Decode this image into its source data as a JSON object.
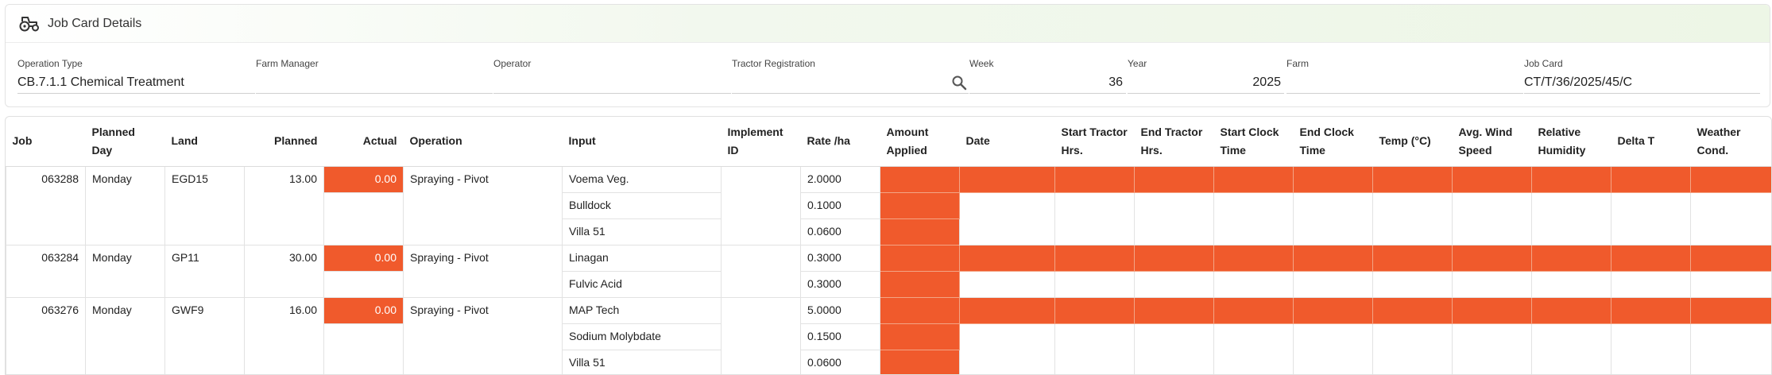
{
  "header": {
    "title": "Job Card Details",
    "icon": "tractor-icon",
    "fields": {
      "operation_type": {
        "label": "Operation Type",
        "value": "CB.7.1.1 Chemical Treatment"
      },
      "farm_manager": {
        "label": "Farm Manager",
        "value": ""
      },
      "operator": {
        "label": "Operator",
        "value": ""
      },
      "tractor_registration": {
        "label": "Tractor Registration",
        "value": ""
      },
      "week": {
        "label": "Week",
        "value": "36"
      },
      "year": {
        "label": "Year",
        "value": "2025"
      },
      "farm": {
        "label": "Farm",
        "value": ""
      },
      "job_card": {
        "label": "Job Card",
        "value": "CT/T/36/2025/45/C"
      }
    }
  },
  "table": {
    "headers": {
      "job": "Job",
      "planned_day": "Planned Day",
      "land": "Land",
      "planned": "Planned",
      "actual": "Actual",
      "operation": "Operation",
      "input": "Input",
      "implement_id_1": "Implement",
      "implement_id_2": "ID",
      "rate": "Rate /ha",
      "amount_1": "Amount",
      "amount_2": "Applied",
      "date": "Date",
      "start_tractor_1": "Start Tractor",
      "start_tractor_2": "Hrs.",
      "end_tractor_1": "End Tractor",
      "end_tractor_2": "Hrs.",
      "start_clock_1": "Start Clock",
      "start_clock_2": "Time",
      "end_clock_1": "End Clock",
      "end_clock_2": "Time",
      "temp": "Temp (°C)",
      "wind_1": "Avg. Wind",
      "wind_2": "Speed",
      "humidity_1": "Relative",
      "humidity_2": "Humidity",
      "delta_t": "Delta T",
      "weather_1": "Weather",
      "weather_2": "Cond."
    },
    "jobs": [
      {
        "job": "063288",
        "day": "Monday",
        "land": "EGD15",
        "planned": "13.00",
        "actual": "0.00",
        "operation": "Spraying - Pivot",
        "inputs": [
          {
            "name": "Voema Veg.",
            "rate": "2.0000"
          },
          {
            "name": "Bulldock",
            "rate": "0.1000"
          },
          {
            "name": "Villa 51",
            "rate": "0.0600"
          }
        ]
      },
      {
        "job": "063284",
        "day": "Monday",
        "land": "GP11",
        "planned": "30.00",
        "actual": "0.00",
        "operation": "Spraying - Pivot",
        "inputs": [
          {
            "name": "Linagan",
            "rate": "0.3000"
          },
          {
            "name": "Fulvic Acid",
            "rate": "0.3000"
          }
        ]
      },
      {
        "job": "063276",
        "day": "Monday",
        "land": "GWF9",
        "planned": "16.00",
        "actual": "0.00",
        "operation": "Spraying - Pivot",
        "inputs": [
          {
            "name": "MAP Tech",
            "rate": "5.0000"
          },
          {
            "name": "Sodium Molybdate",
            "rate": "0.1500"
          },
          {
            "name": "Villa 51",
            "rate": "0.0600"
          }
        ]
      }
    ]
  },
  "colors": {
    "required_fill": "#f05a2c",
    "header_tint": "#edf6e6"
  }
}
